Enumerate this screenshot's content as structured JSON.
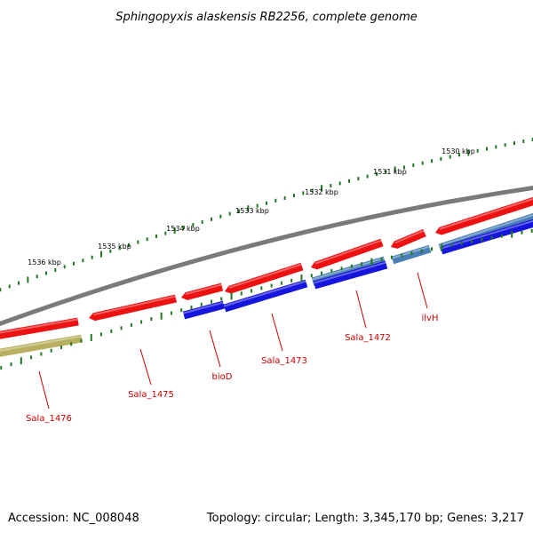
{
  "title": "Sphingopyxis alaskensis RB2256, complete genome",
  "footer": {
    "accession": "Accession: NC_008048",
    "summary": "Topology: circular; Length: 3,345,170 bp; Genes: 3,217"
  },
  "colors": {
    "backbone": "#7a7a7a",
    "forward_cds": "#ee1111",
    "reverse_cds": "#1515dd",
    "steel": "#4a7fb5",
    "khaki": "#b8b060",
    "ticks": "#1f7a1f",
    "label": "#cc0000"
  },
  "scale": {
    "unit": "kbp",
    "major_labels": [
      "1536 kbp",
      "1535 kbp",
      "1534 kbp",
      "1533 kbp",
      "1532 kbp",
      "1531 kbp",
      "1530 kbp"
    ]
  },
  "genes": [
    {
      "name": "Sala_1476"
    },
    {
      "name": "Sala_1475"
    },
    {
      "name": "bioD"
    },
    {
      "name": "Sala_1473"
    },
    {
      "name": "Sala_1472"
    },
    {
      "name": "ilvH"
    }
  ]
}
